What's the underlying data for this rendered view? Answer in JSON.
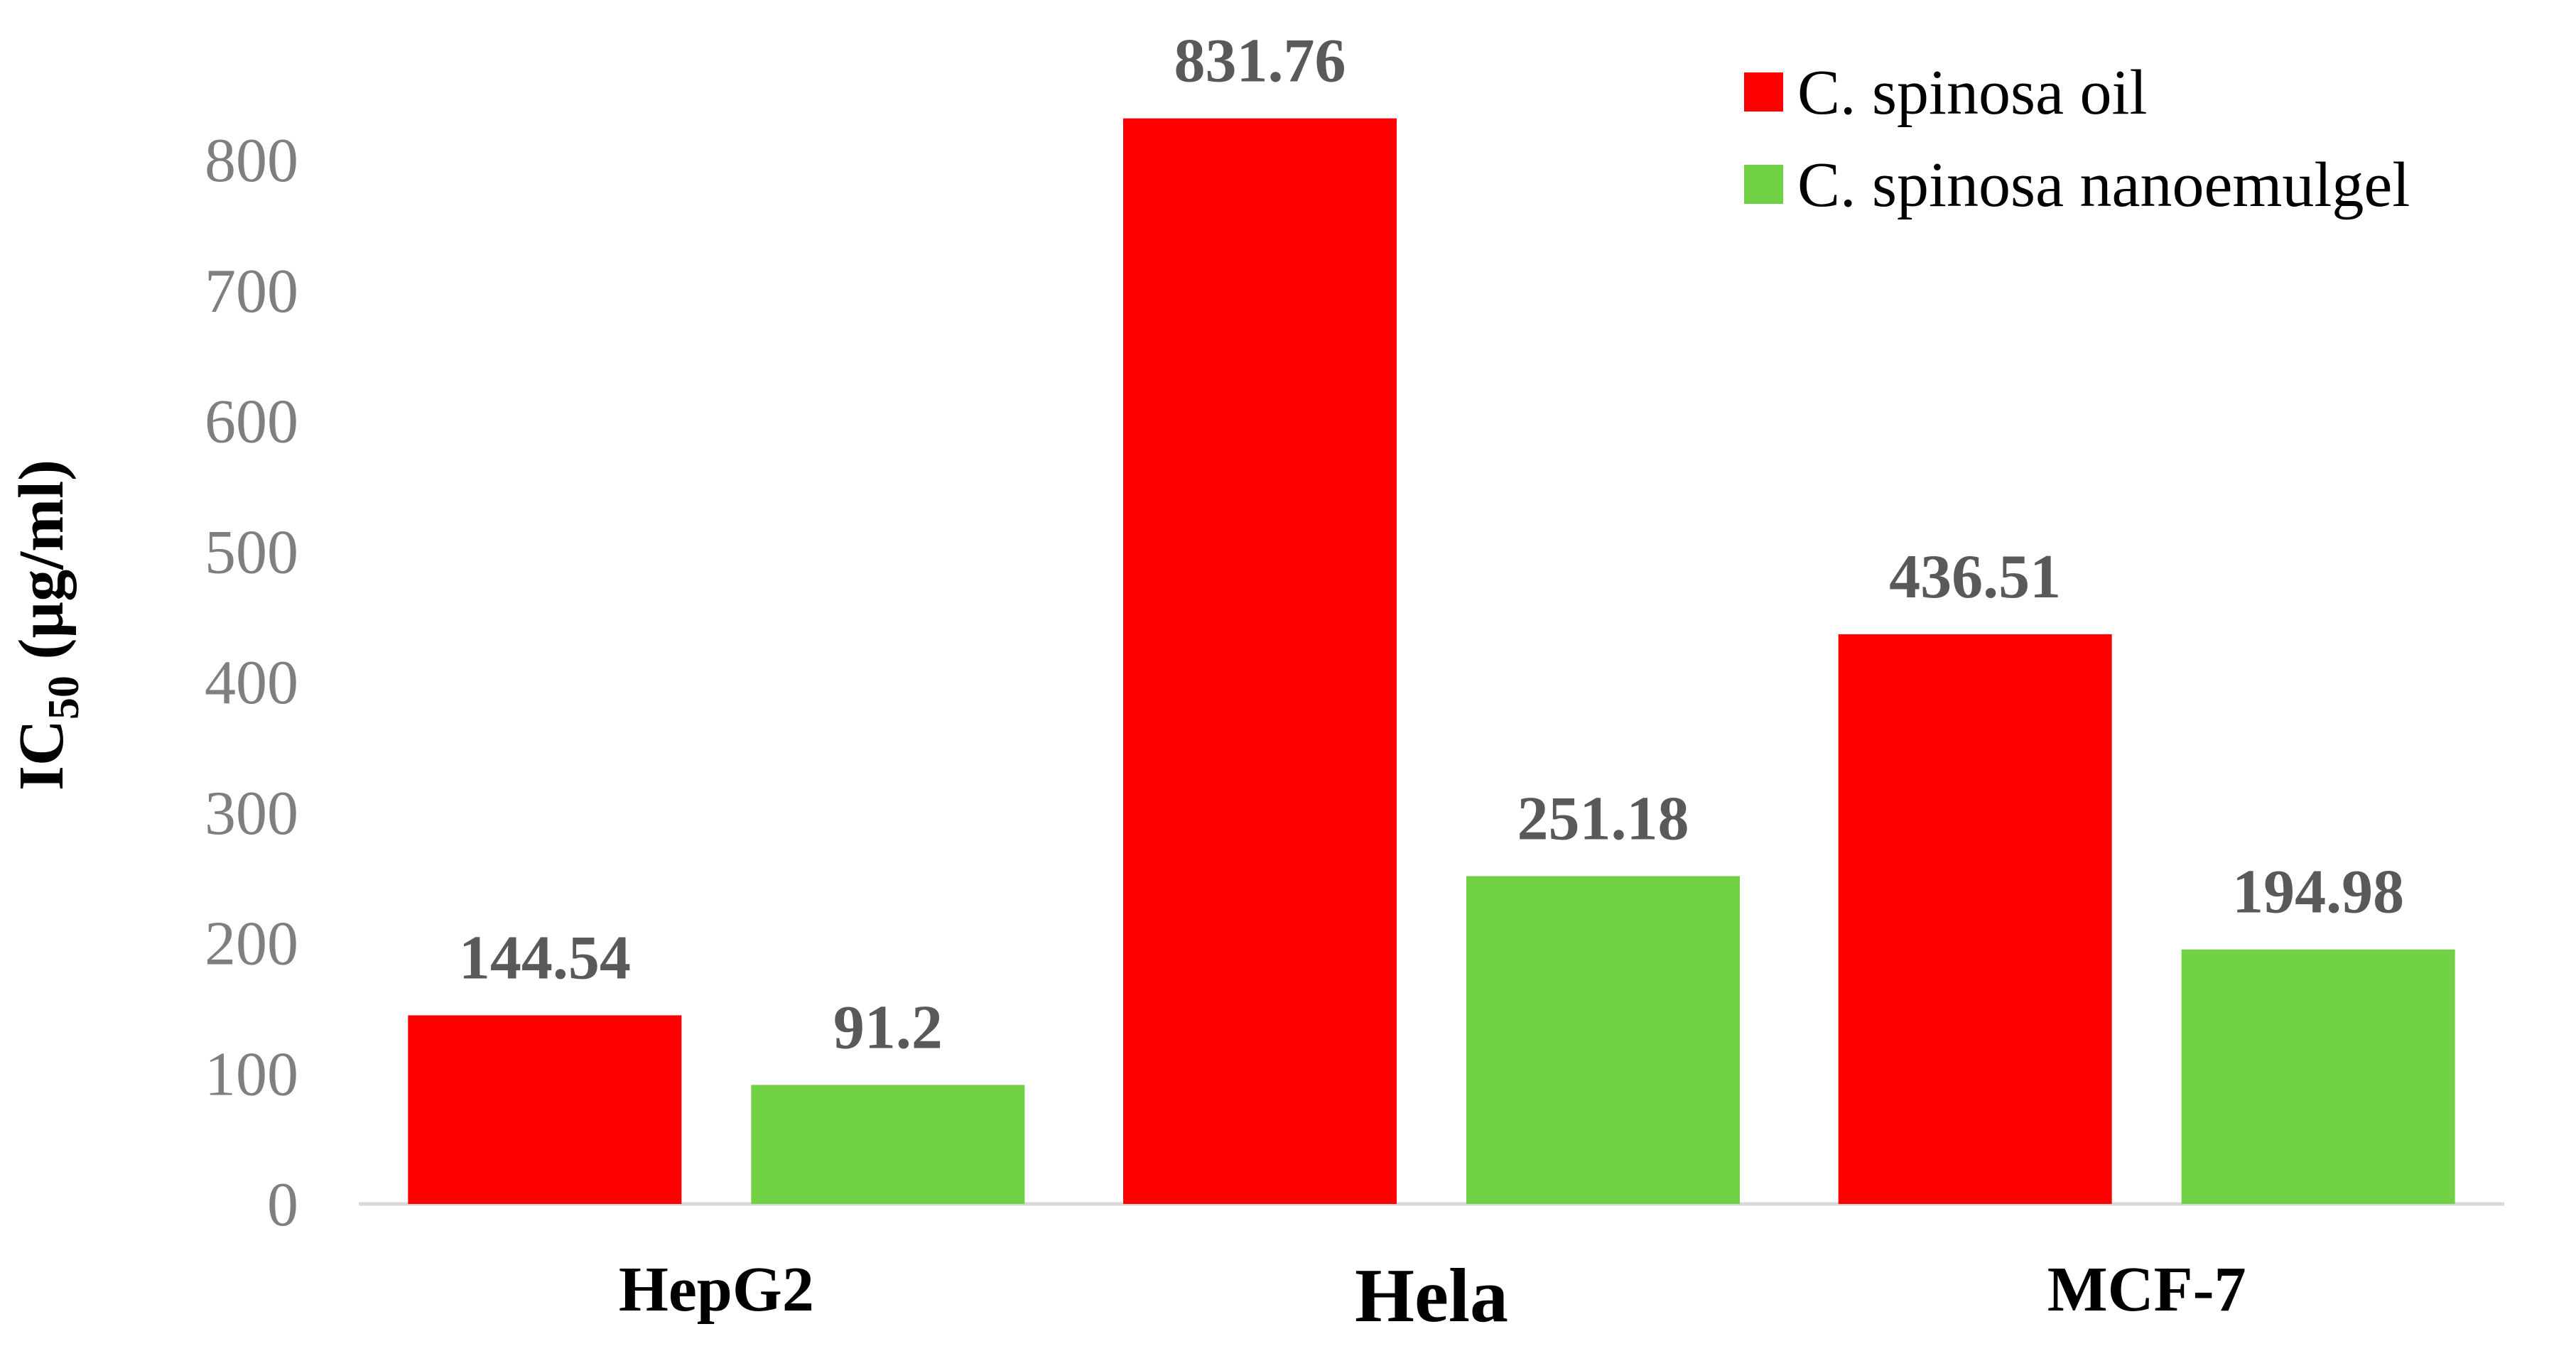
{
  "chart_data": {
    "type": "bar",
    "categories": [
      "HepG2",
      "Hela",
      "MCF-7"
    ],
    "series": [
      {
        "name": "C. spinosa oil",
        "color": "#ff0000",
        "values": [
          144.54,
          831.76,
          436.51
        ],
        "labels": [
          "144.54",
          "831.76",
          "436.51"
        ]
      },
      {
        "name": "C. spinosa nanoemulgel",
        "color": "#70d145",
        "values": [
          91.2,
          251.18,
          194.98
        ],
        "labels": [
          "91.2",
          "251.18",
          "194.98"
        ]
      }
    ],
    "ylabel": {
      "main": "IC",
      "subscript": "50",
      "unit": " (µg/ml)"
    },
    "xlabel": "",
    "ylim": [
      0,
      800
    ],
    "yticks": [
      0,
      100,
      200,
      300,
      400,
      500,
      600,
      700,
      800
    ],
    "grid": false,
    "legend_position": "top-right",
    "data_labels": true
  }
}
